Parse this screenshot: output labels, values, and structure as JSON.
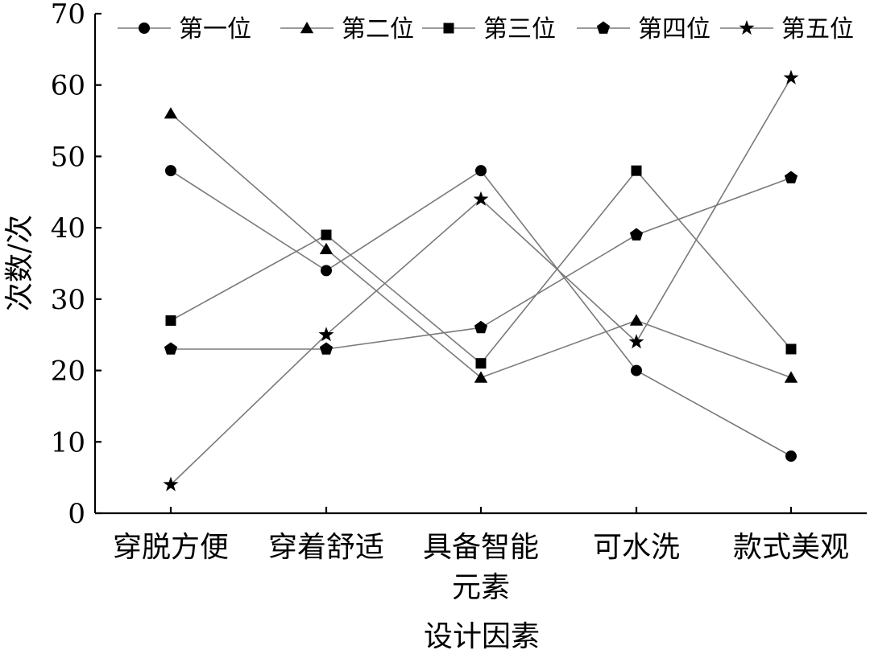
{
  "chart_data": {
    "type": "line",
    "xlabel": "设计因素",
    "ylabel": "次数/次",
    "ylim": [
      0,
      70
    ],
    "yticks": [
      0,
      10,
      20,
      30,
      40,
      50,
      60,
      70
    ],
    "categories": [
      [
        "穿脱方便"
      ],
      [
        "穿着舒适"
      ],
      [
        "具备智能",
        "元素"
      ],
      [
        "可水洗"
      ],
      [
        "款式美观"
      ]
    ],
    "legend_position": "top",
    "grid": false,
    "line_color": "#7a7a7a",
    "marker_color": "#000000",
    "series": [
      {
        "name": "第一位",
        "marker": "circle",
        "values": [
          48,
          34,
          48,
          20,
          8
        ]
      },
      {
        "name": "第二位",
        "marker": "triangle",
        "values": [
          56,
          37,
          19,
          27,
          19
        ]
      },
      {
        "name": "第三位",
        "marker": "square",
        "values": [
          27,
          39,
          21,
          48,
          23
        ]
      },
      {
        "name": "第四位",
        "marker": "pentagon",
        "values": [
          23,
          23,
          26,
          39,
          47
        ]
      },
      {
        "name": "第五位",
        "marker": "star",
        "values": [
          4,
          25,
          44,
          24,
          61
        ]
      }
    ]
  }
}
